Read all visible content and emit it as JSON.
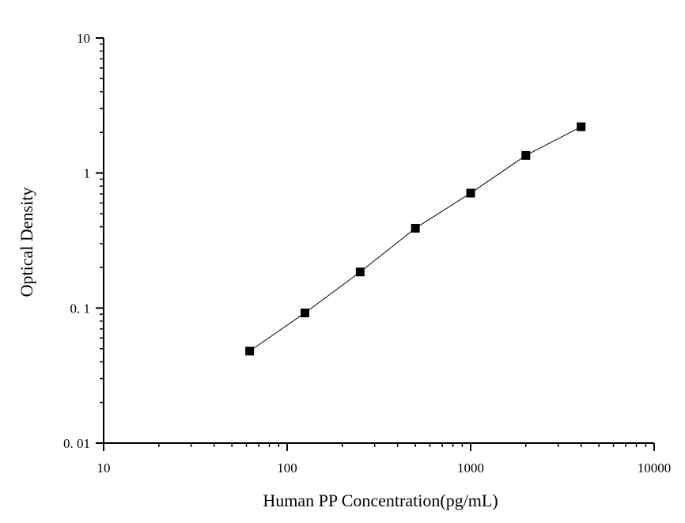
{
  "chart_data": {
    "type": "scatter",
    "xlabel": "Human PP Concentration(pg/mL)",
    "ylabel": "Optical Density",
    "x_scale": "log",
    "y_scale": "log",
    "xlim": [
      10,
      10000
    ],
    "ylim": [
      0.01,
      10
    ],
    "x_ticks": [
      {
        "value": 10,
        "label": "10"
      },
      {
        "value": 100,
        "label": "100"
      },
      {
        "value": 1000,
        "label": "1000"
      },
      {
        "value": 10000,
        "label": "10000"
      }
    ],
    "y_ticks": [
      {
        "value": 0.01,
        "label": "0. 01"
      },
      {
        "value": 0.1,
        "label": "0. 1"
      },
      {
        "value": 1,
        "label": "1"
      },
      {
        "value": 10,
        "label": "10"
      }
    ],
    "grid": false,
    "series": [
      {
        "marker": "square",
        "color": "#000000",
        "connected": true,
        "points": [
          {
            "x": 62.5,
            "y": 0.048
          },
          {
            "x": 125,
            "y": 0.092
          },
          {
            "x": 250,
            "y": 0.185
          },
          {
            "x": 500,
            "y": 0.39
          },
          {
            "x": 1000,
            "y": 0.71
          },
          {
            "x": 2000,
            "y": 1.35
          },
          {
            "x": 4000,
            "y": 2.2
          }
        ]
      }
    ]
  }
}
